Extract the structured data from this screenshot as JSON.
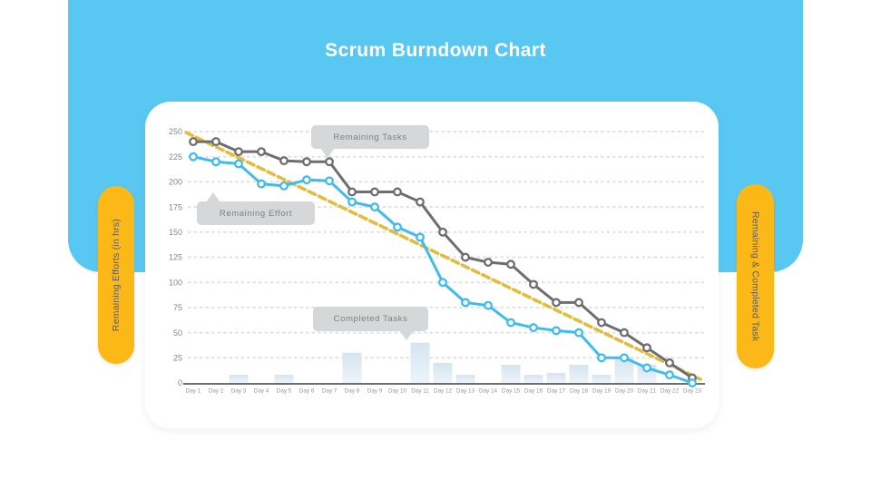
{
  "slide": {
    "title": "Scrum Burndown Chart"
  },
  "pills": {
    "left": "Remaining Efforts (in hrs)",
    "right": "Remaining & Completed Task"
  },
  "callouts": {
    "remaining_tasks": "Remaining Tasks",
    "remaining_effort": "Remaining Effort",
    "completed_tasks": "Completed Tasks"
  },
  "colors": {
    "header_blue": "#58C8F3",
    "pill_yellow": "#FBB817",
    "remaining_tasks_line": "#6D6E71",
    "remaining_effort_line": "#3FBCEC",
    "ideal_line": "#E4BC3C",
    "bar_fill_top": "#D5E4F0",
    "bar_fill_bottom": "#EDF4F9",
    "gridline": "#E2E2E2",
    "axis_text": "#85878A",
    "callout_bg": "#D5D7D8"
  },
  "chart_data": {
    "type": "line",
    "title": "Scrum Burndown Chart",
    "xlabel": "",
    "ylabel_left": "Remaining Efforts (in hrs)",
    "ylabel_right": "Remaining & Completed Task",
    "ylim": [
      0,
      250
    ],
    "ytick_step": 25,
    "yticks": [
      0,
      25,
      50,
      75,
      100,
      125,
      150,
      175,
      200,
      225,
      250
    ],
    "grid": true,
    "legend_position": "callouts-inside-plot",
    "categories": [
      "Day 1",
      "Day 2",
      "Day 3",
      "Day 4",
      "Day 5",
      "Day 6",
      "Day 7",
      "Day 8",
      "Day 9",
      "Day 10",
      "Day 11",
      "Day 12",
      "Day 13",
      "Day 14",
      "Day 15",
      "Day 16",
      "Day 17",
      "Day 18",
      "Day 19",
      "Day 20",
      "Day 21",
      "Day 22",
      "Day 23"
    ],
    "series": [
      {
        "name": "Remaining Tasks",
        "type": "line",
        "color": "#6D6E71",
        "values": [
          240,
          240,
          230,
          230,
          221,
          220,
          220,
          190,
          190,
          190,
          180,
          150,
          125,
          120,
          118,
          98,
          80,
          80,
          60,
          50,
          35,
          20,
          5
        ]
      },
      {
        "name": "Remaining Effort",
        "type": "line",
        "color": "#3FBCEC",
        "values": [
          225,
          220,
          218,
          198,
          196,
          202,
          201,
          180,
          175,
          155,
          145,
          100,
          80,
          77,
          60,
          55,
          52,
          50,
          25,
          25,
          15,
          8,
          0
        ]
      },
      {
        "name": "Ideal Burndown",
        "type": "dashed-line",
        "color": "#E4BC3C",
        "start_value": 250,
        "end_value": 0
      },
      {
        "name": "Completed Tasks",
        "type": "bar",
        "color": "#D5E4F0",
        "values": [
          0,
          0,
          8,
          0,
          8,
          0,
          0,
          30,
          0,
          0,
          40,
          20,
          8,
          0,
          18,
          8,
          10,
          18,
          8,
          25,
          18,
          0,
          0
        ]
      }
    ]
  }
}
